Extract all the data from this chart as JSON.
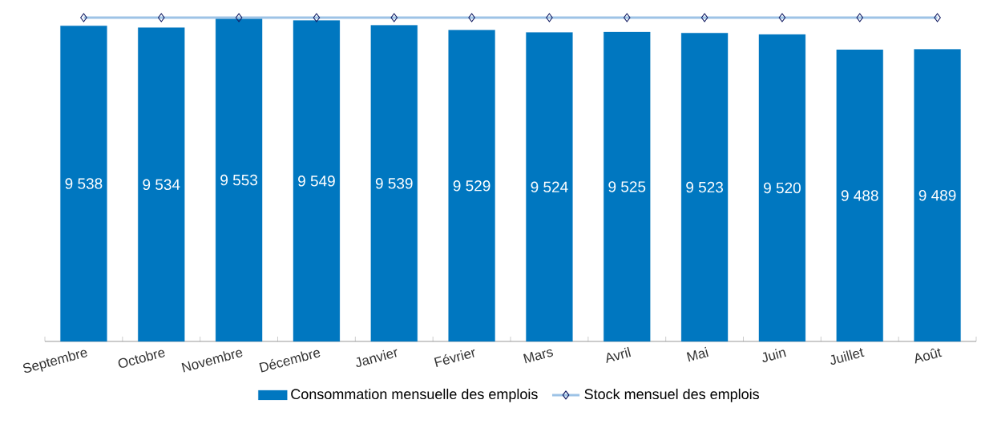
{
  "chart_data": {
    "type": "bar",
    "categories": [
      "Septembre",
      "Octobre",
      "Novembre",
      "Décembre",
      "Janvier",
      "Février",
      "Mars",
      "Avril",
      "Mai",
      "Juin",
      "Juillet",
      "Août"
    ],
    "series": [
      {
        "name": "Consommation mensuelle des emplois",
        "color": "#0077c0",
        "values": [
          9538,
          9534,
          9553,
          9549,
          9539,
          9529,
          9524,
          9525,
          9523,
          9520,
          9488,
          9489
        ],
        "value_labels": [
          "9 538",
          "9 534",
          "9 553",
          "9 549",
          "9 539",
          "9 529",
          "9 524",
          "9 525",
          "9 523",
          "9 520",
          "9 488",
          "9 489"
        ]
      },
      {
        "name": "Stock mensuel des emplois",
        "type": "line",
        "color": "#9dc3e6",
        "marker": "diamond",
        "values": [
          9555,
          9555,
          9555,
          9555,
          9555,
          9555,
          9555,
          9555,
          9555,
          9555,
          9555,
          9555
        ]
      }
    ],
    "ylim": [
      8880,
      9555
    ],
    "tick_labels": "x",
    "legend": "bottom",
    "grid": false
  }
}
